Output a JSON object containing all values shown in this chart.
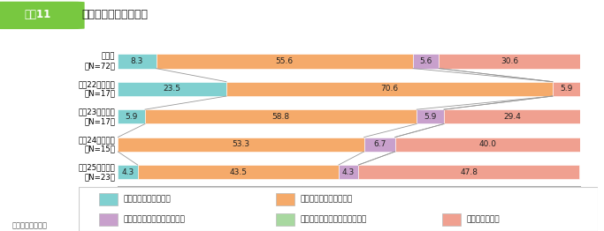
{
  "title": "協議会設置による成果",
  "title_label": "図表11",
  "source": "出典：内閣府調べ",
  "categories": [
    "全　体\n《N=72》",
    "平成22年度設置\n《N=17》",
    "平成23年度設置\n《N=17》",
    "平成24年度設置\n《N=15》",
    "平成25年度以降\n《N=23》"
  ],
  "segments": [
    {
      "label": "大きな成果が見られた",
      "color": "#80d0d0",
      "values": [
        8.3,
        23.5,
        5.9,
        0.0,
        4.3
      ]
    },
    {
      "label": "ある程度成果が見られた",
      "color": "#f5aa6a",
      "values": [
        55.6,
        70.6,
        58.8,
        53.3,
        43.5
      ]
    },
    {
      "label": "あまり成果は見られていない",
      "color": "#c8a0cc",
      "values": [
        5.6,
        0.0,
        5.9,
        6.7,
        4.3
      ]
    },
    {
      "label": "ほとんど成果は見られていない",
      "color": "#a8d8a0",
      "values": [
        0.0,
        0.0,
        0.0,
        0.0,
        0.0
      ]
    },
    {
      "label": "現時点では不明",
      "color": "#f0a090",
      "values": [
        30.6,
        5.9,
        29.4,
        40.0,
        47.8
      ]
    }
  ],
  "title_box_color": "#78c840",
  "title_box_text_color": "#ffffff",
  "title_fontsize": 9,
  "bar_height": 0.52,
  "bar_spacing": 1.0,
  "legend_box_color": "#ffffff",
  "legend_border_color": "#cccccc",
  "axis_label_pct": "(%)",
  "xticks": [
    0,
    20,
    40,
    60,
    80,
    100
  ]
}
